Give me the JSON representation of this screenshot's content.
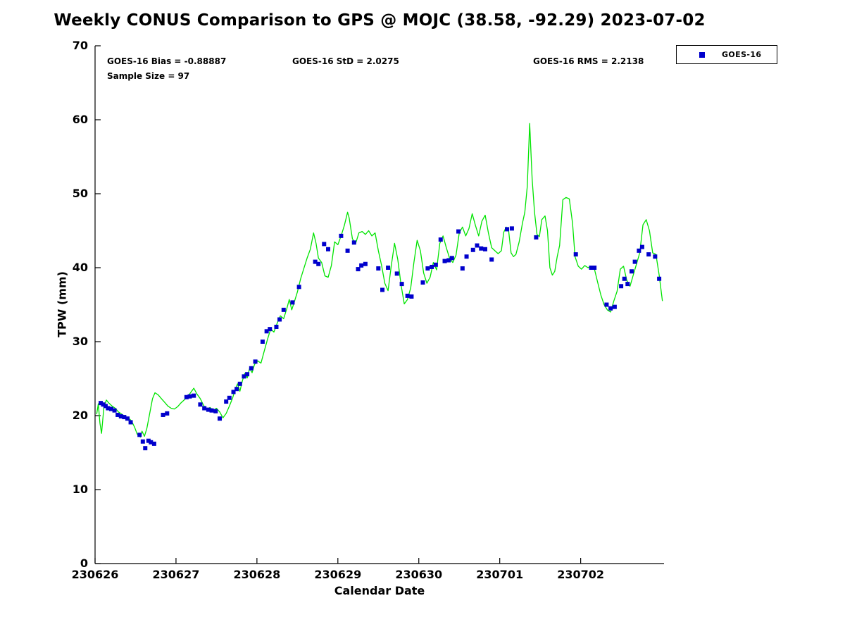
{
  "title": "Weekly CONUS Comparison to GPS @ MOJC (38.58, -92.29) 2023-07-02",
  "stats": {
    "bias": "GOES-16 Bias = -0.88887",
    "std": "GOES-16 StD = 2.0275",
    "rms": "GOES-16 RMS = 2.2138",
    "sample": "Sample Size = 97"
  },
  "legend": {
    "entries": [
      {
        "label": "GOES-16",
        "marker": "square",
        "color": "#0000cc"
      }
    ],
    "position": "top-right-outside"
  },
  "axes": {
    "xlabel": "Calendar Date",
    "ylabel": "TPW (mm)"
  },
  "chart_data": {
    "type": "line",
    "title": "Weekly CONUS Comparison to GPS @ MOJC (38.58, -92.29) 2023-07-02",
    "xlabel": "Calendar Date",
    "ylabel": "TPW (mm)",
    "x_unit": "days since 230626",
    "xlim": [
      0,
      7.03
    ],
    "ylim": [
      0,
      70
    ],
    "grid": false,
    "x_ticks": [
      {
        "value": 0,
        "label": "230626"
      },
      {
        "value": 1,
        "label": "230627"
      },
      {
        "value": 2,
        "label": "230628"
      },
      {
        "value": 3,
        "label": "230629"
      },
      {
        "value": 4,
        "label": "230630"
      },
      {
        "value": 5,
        "label": "230701"
      },
      {
        "value": 6,
        "label": "230702"
      }
    ],
    "y_ticks": [
      {
        "value": 0,
        "label": "0"
      },
      {
        "value": 10,
        "label": "10"
      },
      {
        "value": 20,
        "label": "20"
      },
      {
        "value": 30,
        "label": "30"
      },
      {
        "value": 40,
        "label": "40"
      },
      {
        "value": 50,
        "label": "50"
      },
      {
        "value": 60,
        "label": "60"
      },
      {
        "value": 70,
        "label": "70"
      }
    ],
    "series": [
      {
        "name": "GPS",
        "type": "line",
        "color": "#00e400",
        "points": [
          [
            0.02,
            20.2
          ],
          [
            0.04,
            21.6
          ],
          [
            0.06,
            19.0
          ],
          [
            0.08,
            17.6
          ],
          [
            0.11,
            21.2
          ],
          [
            0.14,
            22.1
          ],
          [
            0.17,
            21.7
          ],
          [
            0.21,
            21.3
          ],
          [
            0.25,
            21.0
          ],
          [
            0.29,
            20.5
          ],
          [
            0.33,
            20.2
          ],
          [
            0.37,
            19.9
          ],
          [
            0.41,
            19.7
          ],
          [
            0.45,
            19.3
          ],
          [
            0.49,
            18.4
          ],
          [
            0.52,
            17.5
          ],
          [
            0.56,
            17.1
          ],
          [
            0.58,
            17.9
          ],
          [
            0.61,
            17.2
          ],
          [
            0.64,
            18.3
          ],
          [
            0.68,
            20.6
          ],
          [
            0.71,
            22.3
          ],
          [
            0.74,
            23.1
          ],
          [
            0.78,
            22.8
          ],
          [
            0.82,
            22.3
          ],
          [
            0.86,
            21.8
          ],
          [
            0.9,
            21.3
          ],
          [
            0.94,
            21.0
          ],
          [
            0.98,
            20.9
          ],
          [
            1.02,
            21.2
          ],
          [
            1.06,
            21.7
          ],
          [
            1.1,
            22.1
          ],
          [
            1.14,
            22.5
          ],
          [
            1.18,
            23.1
          ],
          [
            1.22,
            23.7
          ],
          [
            1.26,
            22.9
          ],
          [
            1.3,
            22.3
          ],
          [
            1.34,
            21.4
          ],
          [
            1.38,
            20.8
          ],
          [
            1.42,
            21.1
          ],
          [
            1.46,
            20.7
          ],
          [
            1.5,
            21.0
          ],
          [
            1.54,
            20.5
          ],
          [
            1.58,
            19.7
          ],
          [
            1.62,
            20.3
          ],
          [
            1.66,
            21.3
          ],
          [
            1.7,
            22.4
          ],
          [
            1.73,
            23.5
          ],
          [
            1.76,
            24.3
          ],
          [
            1.79,
            23.3
          ],
          [
            1.82,
            24.7
          ],
          [
            1.85,
            25.7
          ],
          [
            1.88,
            25.1
          ],
          [
            1.91,
            26.4
          ],
          [
            1.94,
            25.8
          ],
          [
            1.97,
            26.9
          ],
          [
            2.01,
            27.4
          ],
          [
            2.05,
            27.1
          ],
          [
            2.09,
            28.7
          ],
          [
            2.13,
            30.3
          ],
          [
            2.17,
            31.7
          ],
          [
            2.21,
            31.3
          ],
          [
            2.25,
            32.5
          ],
          [
            2.29,
            33.5
          ],
          [
            2.33,
            33.1
          ],
          [
            2.37,
            34.5
          ],
          [
            2.4,
            35.7
          ],
          [
            2.43,
            34.3
          ],
          [
            2.46,
            35.3
          ],
          [
            2.5,
            36.7
          ],
          [
            2.54,
            38.5
          ],
          [
            2.58,
            39.9
          ],
          [
            2.62,
            41.3
          ],
          [
            2.66,
            42.5
          ],
          [
            2.7,
            44.7
          ],
          [
            2.73,
            43.3
          ],
          [
            2.76,
            41.3
          ],
          [
            2.8,
            40.7
          ],
          [
            2.84,
            38.9
          ],
          [
            2.88,
            38.7
          ],
          [
            2.92,
            40.3
          ],
          [
            2.96,
            43.5
          ],
          [
            3.0,
            43.1
          ],
          [
            3.04,
            44.3
          ],
          [
            3.08,
            45.7
          ],
          [
            3.12,
            47.5
          ],
          [
            3.14,
            46.7
          ],
          [
            3.18,
            43.9
          ],
          [
            3.22,
            43.3
          ],
          [
            3.26,
            44.7
          ],
          [
            3.3,
            44.9
          ],
          [
            3.34,
            44.5
          ],
          [
            3.38,
            45.0
          ],
          [
            3.42,
            44.3
          ],
          [
            3.46,
            44.7
          ],
          [
            3.5,
            42.3
          ],
          [
            3.54,
            40.3
          ],
          [
            3.58,
            37.9
          ],
          [
            3.62,
            36.9
          ],
          [
            3.66,
            40.3
          ],
          [
            3.7,
            43.3
          ],
          [
            3.74,
            41.1
          ],
          [
            3.78,
            37.7
          ],
          [
            3.82,
            35.1
          ],
          [
            3.86,
            35.7
          ],
          [
            3.9,
            37.3
          ],
          [
            3.94,
            40.7
          ],
          [
            3.98,
            43.7
          ],
          [
            4.02,
            42.3
          ],
          [
            4.06,
            39.3
          ],
          [
            4.1,
            37.9
          ],
          [
            4.14,
            38.7
          ],
          [
            4.18,
            40.7
          ],
          [
            4.22,
            39.7
          ],
          [
            4.26,
            43.3
          ],
          [
            4.3,
            44.3
          ],
          [
            4.34,
            42.7
          ],
          [
            4.38,
            41.3
          ],
          [
            4.42,
            40.7
          ],
          [
            4.46,
            41.7
          ],
          [
            4.5,
            44.7
          ],
          [
            4.54,
            45.5
          ],
          [
            4.58,
            44.3
          ],
          [
            4.62,
            45.3
          ],
          [
            4.66,
            47.3
          ],
          [
            4.7,
            45.7
          ],
          [
            4.74,
            44.3
          ],
          [
            4.78,
            46.3
          ],
          [
            4.82,
            47.1
          ],
          [
            4.86,
            44.7
          ],
          [
            4.9,
            42.7
          ],
          [
            4.94,
            42.3
          ],
          [
            4.98,
            41.9
          ],
          [
            5.02,
            42.3
          ],
          [
            5.05,
            44.8
          ],
          [
            5.08,
            45.5
          ],
          [
            5.11,
            45.0
          ],
          [
            5.14,
            42.0
          ],
          [
            5.17,
            41.5
          ],
          [
            5.2,
            41.8
          ],
          [
            5.24,
            43.5
          ],
          [
            5.28,
            46.0
          ],
          [
            5.31,
            47.5
          ],
          [
            5.34,
            51.0
          ],
          [
            5.37,
            59.5
          ],
          [
            5.4,
            52.0
          ],
          [
            5.43,
            47.5
          ],
          [
            5.46,
            44.5
          ],
          [
            5.49,
            44.2
          ],
          [
            5.52,
            46.5
          ],
          [
            5.56,
            47.0
          ],
          [
            5.59,
            45.0
          ],
          [
            5.62,
            40.0
          ],
          [
            5.65,
            39.0
          ],
          [
            5.68,
            39.5
          ],
          [
            5.71,
            41.5
          ],
          [
            5.74,
            43.0
          ],
          [
            5.78,
            49.2
          ],
          [
            5.82,
            49.5
          ],
          [
            5.86,
            49.3
          ],
          [
            5.9,
            46.0
          ],
          [
            5.93,
            41.5
          ],
          [
            5.97,
            40.2
          ],
          [
            6.01,
            39.8
          ],
          [
            6.05,
            40.3
          ],
          [
            6.09,
            40.0
          ],
          [
            6.13,
            40.2
          ],
          [
            6.17,
            39.8
          ],
          [
            6.21,
            38.0
          ],
          [
            6.25,
            36.3
          ],
          [
            6.29,
            35.0
          ],
          [
            6.33,
            34.3
          ],
          [
            6.37,
            34.0
          ],
          [
            6.41,
            35.5
          ],
          [
            6.45,
            36.8
          ],
          [
            6.49,
            39.8
          ],
          [
            6.53,
            40.2
          ],
          [
            6.57,
            38.3
          ],
          [
            6.61,
            37.5
          ],
          [
            6.65,
            39.0
          ],
          [
            6.69,
            40.5
          ],
          [
            6.73,
            42.0
          ],
          [
            6.77,
            45.8
          ],
          [
            6.81,
            46.5
          ],
          [
            6.85,
            45.0
          ],
          [
            6.89,
            42.0
          ],
          [
            6.93,
            41.8
          ],
          [
            6.97,
            39.0
          ],
          [
            7.01,
            35.5
          ]
        ]
      },
      {
        "name": "GOES-16",
        "type": "scatter",
        "marker": "square",
        "color": "#0000cc",
        "points": [
          [
            0.07,
            21.7
          ],
          [
            0.1,
            21.5
          ],
          [
            0.13,
            21.3
          ],
          [
            0.16,
            21.0
          ],
          [
            0.2,
            20.9
          ],
          [
            0.24,
            20.7
          ],
          [
            0.28,
            20.1
          ],
          [
            0.32,
            19.9
          ],
          [
            0.36,
            19.8
          ],
          [
            0.4,
            19.6
          ],
          [
            0.44,
            19.1
          ],
          [
            0.55,
            17.4
          ],
          [
            0.59,
            16.5
          ],
          [
            0.62,
            15.6
          ],
          [
            0.66,
            16.6
          ],
          [
            0.69,
            16.4
          ],
          [
            0.73,
            16.2
          ],
          [
            0.84,
            20.1
          ],
          [
            0.89,
            20.3
          ],
          [
            1.13,
            22.5
          ],
          [
            1.17,
            22.6
          ],
          [
            1.22,
            22.7
          ],
          [
            1.3,
            21.5
          ],
          [
            1.35,
            21.0
          ],
          [
            1.4,
            20.8
          ],
          [
            1.44,
            20.7
          ],
          [
            1.49,
            20.6
          ],
          [
            1.54,
            19.6
          ],
          [
            1.62,
            21.9
          ],
          [
            1.66,
            22.4
          ],
          [
            1.71,
            23.2
          ],
          [
            1.75,
            23.6
          ],
          [
            1.79,
            24.3
          ],
          [
            1.84,
            25.3
          ],
          [
            1.88,
            25.6
          ],
          [
            1.93,
            26.4
          ],
          [
            1.98,
            27.3
          ],
          [
            2.07,
            30.0
          ],
          [
            2.12,
            31.4
          ],
          [
            2.16,
            31.7
          ],
          [
            2.24,
            32.0
          ],
          [
            2.28,
            33.0
          ],
          [
            2.33,
            34.3
          ],
          [
            2.44,
            35.3
          ],
          [
            2.52,
            37.4
          ],
          [
            2.72,
            40.8
          ],
          [
            2.76,
            40.5
          ],
          [
            2.83,
            43.2
          ],
          [
            2.88,
            42.5
          ],
          [
            3.04,
            44.3
          ],
          [
            3.12,
            42.3
          ],
          [
            3.2,
            43.4
          ],
          [
            3.25,
            39.8
          ],
          [
            3.29,
            40.3
          ],
          [
            3.34,
            40.5
          ],
          [
            3.5,
            39.9
          ],
          [
            3.55,
            37.0
          ],
          [
            3.62,
            40.0
          ],
          [
            3.73,
            39.2
          ],
          [
            3.79,
            37.8
          ],
          [
            3.86,
            36.2
          ],
          [
            3.91,
            36.1
          ],
          [
            4.05,
            38.0
          ],
          [
            4.11,
            39.9
          ],
          [
            4.16,
            40.1
          ],
          [
            4.21,
            40.4
          ],
          [
            4.27,
            43.8
          ],
          [
            4.32,
            40.9
          ],
          [
            4.37,
            41.0
          ],
          [
            4.41,
            41.3
          ],
          [
            4.49,
            44.9
          ],
          [
            4.54,
            39.9
          ],
          [
            4.59,
            41.5
          ],
          [
            4.67,
            42.4
          ],
          [
            4.72,
            43.0
          ],
          [
            4.77,
            42.6
          ],
          [
            4.82,
            42.5
          ],
          [
            4.9,
            41.1
          ],
          [
            5.09,
            45.2
          ],
          [
            5.15,
            45.3
          ],
          [
            5.45,
            44.1
          ],
          [
            5.94,
            41.8
          ],
          [
            6.13,
            40.0
          ],
          [
            6.17,
            40.0
          ],
          [
            6.32,
            35.0
          ],
          [
            6.37,
            34.5
          ],
          [
            6.42,
            34.7
          ],
          [
            6.5,
            37.5
          ],
          [
            6.54,
            38.5
          ],
          [
            6.58,
            37.8
          ],
          [
            6.63,
            39.5
          ],
          [
            6.67,
            40.8
          ],
          [
            6.72,
            42.3
          ],
          [
            6.76,
            42.8
          ],
          [
            6.84,
            41.8
          ],
          [
            6.92,
            41.5
          ],
          [
            6.97,
            38.5
          ]
        ]
      }
    ]
  }
}
